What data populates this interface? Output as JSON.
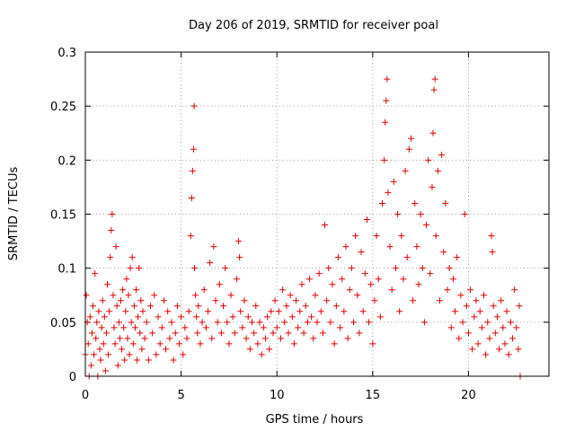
{
  "chart_data": {
    "type": "scatter",
    "title": "Day 206 of 2019, SRMTID for receiver poal",
    "xlabel": "GPS time / hours",
    "ylabel": "SRMTID / TECUs",
    "xlim": [
      0,
      24.2
    ],
    "ylim": [
      0,
      0.3
    ],
    "xticks": [
      0,
      5,
      10,
      15,
      20
    ],
    "xtick_labels": [
      "0",
      "5",
      "10",
      "15",
      "20"
    ],
    "yticks": [
      0,
      0.05,
      0.1,
      0.15,
      0.2,
      0.25,
      0.3
    ],
    "ytick_labels": [
      "0",
      "0.05",
      "0.1",
      "0.15",
      "0.2",
      "0.25",
      "0.3"
    ],
    "grid": true,
    "marker": "+",
    "series": [
      {
        "name": "SRMTID",
        "color": "#e00000",
        "points": [
          [
            0.0,
            0.02
          ],
          [
            0.05,
            0.075
          ],
          [
            0.1,
            0.05
          ],
          [
            0.15,
            0.03
          ],
          [
            0.2,
            0.0
          ],
          [
            0.25,
            0.055
          ],
          [
            0.3,
            0.01
          ],
          [
            0.35,
            0.04
          ],
          [
            0.4,
            0.065
          ],
          [
            0.45,
            0.02
          ],
          [
            0.5,
            0.095
          ],
          [
            0.55,
            0.035
          ],
          [
            0.6,
            0.05
          ],
          [
            0.65,
            0.0
          ],
          [
            0.7,
            0.06
          ],
          [
            0.75,
            0.025
          ],
          [
            0.8,
            0.015
          ],
          [
            0.85,
            0.045
          ],
          [
            0.9,
            0.07
          ],
          [
            0.95,
            0.03
          ],
          [
            1.0,
            0.055
          ],
          [
            1.05,
            0.005
          ],
          [
            1.1,
            0.04
          ],
          [
            1.15,
            0.085
          ],
          [
            1.2,
            0.02
          ],
          [
            1.25,
            0.06
          ],
          [
            1.3,
            0.11
          ],
          [
            1.35,
            0.135
          ],
          [
            1.4,
            0.15
          ],
          [
            1.45,
            0.075
          ],
          [
            1.5,
            0.045
          ],
          [
            1.55,
            0.03
          ],
          [
            1.6,
            0.12
          ],
          [
            1.65,
            0.065
          ],
          [
            1.7,
            0.01
          ],
          [
            1.75,
            0.05
          ],
          [
            1.8,
            0.035
          ],
          [
            1.85,
            0.07
          ],
          [
            1.9,
            0.025
          ],
          [
            1.95,
            0.08
          ],
          [
            2.0,
            0.045
          ],
          [
            2.05,
            0.015
          ],
          [
            2.1,
            0.06
          ],
          [
            2.15,
            0.09
          ],
          [
            2.2,
            0.035
          ],
          [
            2.25,
            0.075
          ],
          [
            2.3,
            0.02
          ],
          [
            2.35,
            0.1
          ],
          [
            2.4,
            0.05
          ],
          [
            2.45,
            0.11
          ],
          [
            2.5,
            0.03
          ],
          [
            2.55,
            0.065
          ],
          [
            2.6,
            0.045
          ],
          [
            2.65,
            0.08
          ],
          [
            2.7,
            0.015
          ],
          [
            2.75,
            0.055
          ],
          [
            2.8,
            0.1
          ],
          [
            2.85,
            0.04
          ],
          [
            2.9,
            0.07
          ],
          [
            2.95,
            0.025
          ],
          [
            3.0,
            0.06
          ],
          [
            3.1,
            0.035
          ],
          [
            3.2,
            0.05
          ],
          [
            3.3,
            0.015
          ],
          [
            3.4,
            0.065
          ],
          [
            3.5,
            0.04
          ],
          [
            3.6,
            0.075
          ],
          [
            3.7,
            0.02
          ],
          [
            3.8,
            0.055
          ],
          [
            3.9,
            0.03
          ],
          [
            4.0,
            0.045
          ],
          [
            4.1,
            0.07
          ],
          [
            4.2,
            0.025
          ],
          [
            4.3,
            0.06
          ],
          [
            4.4,
            0.035
          ],
          [
            4.5,
            0.05
          ],
          [
            4.6,
            0.015
          ],
          [
            4.7,
            0.04
          ],
          [
            4.8,
            0.065
          ],
          [
            4.9,
            0.03
          ],
          [
            5.0,
            0.055
          ],
          [
            5.1,
            0.02
          ],
          [
            5.2,
            0.045
          ],
          [
            5.3,
            0.035
          ],
          [
            5.4,
            0.06
          ],
          [
            5.5,
            0.13
          ],
          [
            5.55,
            0.165
          ],
          [
            5.6,
            0.19
          ],
          [
            5.65,
            0.21
          ],
          [
            5.68,
            0.25
          ],
          [
            5.7,
            0.1
          ],
          [
            5.75,
            0.075
          ],
          [
            5.8,
            0.055
          ],
          [
            5.85,
            0.04
          ],
          [
            5.9,
            0.065
          ],
          [
            6.0,
            0.03
          ],
          [
            6.1,
            0.05
          ],
          [
            6.2,
            0.08
          ],
          [
            6.3,
            0.045
          ],
          [
            6.4,
            0.06
          ],
          [
            6.5,
            0.105
          ],
          [
            6.6,
            0.035
          ],
          [
            6.7,
            0.12
          ],
          [
            6.8,
            0.07
          ],
          [
            6.9,
            0.05
          ],
          [
            7.0,
            0.085
          ],
          [
            7.1,
            0.04
          ],
          [
            7.2,
            0.065
          ],
          [
            7.3,
            0.1
          ],
          [
            7.4,
            0.05
          ],
          [
            7.5,
            0.03
          ],
          [
            7.6,
            0.075
          ],
          [
            7.7,
            0.055
          ],
          [
            7.8,
            0.04
          ],
          [
            7.9,
            0.09
          ],
          [
            8.0,
            0.125
          ],
          [
            8.05,
            0.11
          ],
          [
            8.1,
            0.06
          ],
          [
            8.2,
            0.045
          ],
          [
            8.3,
            0.07
          ],
          [
            8.4,
            0.035
          ],
          [
            8.5,
            0.055
          ],
          [
            8.6,
            0.025
          ],
          [
            8.7,
            0.05
          ],
          [
            8.8,
            0.04
          ],
          [
            8.9,
            0.065
          ],
          [
            9.0,
            0.03
          ],
          [
            9.1,
            0.05
          ],
          [
            9.2,
            0.02
          ],
          [
            9.3,
            0.045
          ],
          [
            9.4,
            0.035
          ],
          [
            9.5,
            0.055
          ],
          [
            9.6,
            0.025
          ],
          [
            9.7,
            0.06
          ],
          [
            9.8,
            0.04
          ],
          [
            9.9,
            0.07
          ],
          [
            10.0,
            0.045
          ],
          [
            10.1,
            0.06
          ],
          [
            10.2,
            0.035
          ],
          [
            10.3,
            0.08
          ],
          [
            10.4,
            0.05
          ],
          [
            10.5,
            0.065
          ],
          [
            10.6,
            0.04
          ],
          [
            10.7,
            0.075
          ],
          [
            10.8,
            0.055
          ],
          [
            10.9,
            0.03
          ],
          [
            11.0,
            0.07
          ],
          [
            11.1,
            0.045
          ],
          [
            11.2,
            0.06
          ],
          [
            11.3,
            0.085
          ],
          [
            11.4,
            0.04
          ],
          [
            11.5,
            0.065
          ],
          [
            11.6,
            0.05
          ],
          [
            11.7,
            0.09
          ],
          [
            11.8,
            0.055
          ],
          [
            11.9,
            0.035
          ],
          [
            12.0,
            0.075
          ],
          [
            12.1,
            0.05
          ],
          [
            12.2,
            0.095
          ],
          [
            12.3,
            0.06
          ],
          [
            12.4,
            0.04
          ],
          [
            12.5,
            0.14
          ],
          [
            12.6,
            0.07
          ],
          [
            12.7,
            0.1
          ],
          [
            12.8,
            0.05
          ],
          [
            12.9,
            0.085
          ],
          [
            13.0,
            0.03
          ],
          [
            13.1,
            0.065
          ],
          [
            13.2,
            0.11
          ],
          [
            13.3,
            0.045
          ],
          [
            13.4,
            0.09
          ],
          [
            13.5,
            0.06
          ],
          [
            13.6,
            0.12
          ],
          [
            13.7,
            0.035
          ],
          [
            13.8,
            0.08
          ],
          [
            13.9,
            0.1
          ],
          [
            14.0,
            0.05
          ],
          [
            14.1,
            0.13
          ],
          [
            14.2,
            0.075
          ],
          [
            14.3,
            0.04
          ],
          [
            14.4,
            0.115
          ],
          [
            14.5,
            0.06
          ],
          [
            14.6,
            0.095
          ],
          [
            14.7,
            0.145
          ],
          [
            14.8,
            0.05
          ],
          [
            14.9,
            0.085
          ],
          [
            15.0,
            0.03
          ],
          [
            15.1,
            0.07
          ],
          [
            15.2,
            0.13
          ],
          [
            15.3,
            0.09
          ],
          [
            15.4,
            0.055
          ],
          [
            15.5,
            0.16
          ],
          [
            15.6,
            0.2
          ],
          [
            15.65,
            0.235
          ],
          [
            15.7,
            0.255
          ],
          [
            15.75,
            0.275
          ],
          [
            15.8,
            0.17
          ],
          [
            15.9,
            0.12
          ],
          [
            16.0,
            0.08
          ],
          [
            16.1,
            0.18
          ],
          [
            16.2,
            0.1
          ],
          [
            16.3,
            0.15
          ],
          [
            16.4,
            0.06
          ],
          [
            16.5,
            0.13
          ],
          [
            16.6,
            0.09
          ],
          [
            16.7,
            0.19
          ],
          [
            16.8,
            0.11
          ],
          [
            16.9,
            0.21
          ],
          [
            17.0,
            0.22
          ],
          [
            17.1,
            0.07
          ],
          [
            17.2,
            0.16
          ],
          [
            17.3,
            0.12
          ],
          [
            17.4,
            0.085
          ],
          [
            17.5,
            0.15
          ],
          [
            17.6,
            0.1
          ],
          [
            17.7,
            0.05
          ],
          [
            17.8,
            0.14
          ],
          [
            17.9,
            0.2
          ],
          [
            18.0,
            0.095
          ],
          [
            18.1,
            0.175
          ],
          [
            18.15,
            0.225
          ],
          [
            18.2,
            0.265
          ],
          [
            18.25,
            0.275
          ],
          [
            18.3,
            0.13
          ],
          [
            18.4,
            0.19
          ],
          [
            18.5,
            0.07
          ],
          [
            18.6,
            0.205
          ],
          [
            18.7,
            0.115
          ],
          [
            18.8,
            0.16
          ],
          [
            18.9,
            0.08
          ],
          [
            19.0,
            0.1
          ],
          [
            19.1,
            0.045
          ],
          [
            19.2,
            0.09
          ],
          [
            19.3,
            0.06
          ],
          [
            19.4,
            0.11
          ],
          [
            19.5,
            0.035
          ],
          [
            19.6,
            0.075
          ],
          [
            19.7,
            0.05
          ],
          [
            19.8,
            0.15
          ],
          [
            19.9,
            0.065
          ],
          [
            20.0,
            0.04
          ],
          [
            20.1,
            0.08
          ],
          [
            20.2,
            0.025
          ],
          [
            20.3,
            0.055
          ],
          [
            20.4,
            0.07
          ],
          [
            20.5,
            0.03
          ],
          [
            20.6,
            0.06
          ],
          [
            20.7,
            0.045
          ],
          [
            20.8,
            0.075
          ],
          [
            20.9,
            0.02
          ],
          [
            21.0,
            0.05
          ],
          [
            21.1,
            0.035
          ],
          [
            21.2,
            0.13
          ],
          [
            21.25,
            0.115
          ],
          [
            21.3,
            0.065
          ],
          [
            21.4,
            0.04
          ],
          [
            21.5,
            0.055
          ],
          [
            21.6,
            0.025
          ],
          [
            21.7,
            0.07
          ],
          [
            21.8,
            0.045
          ],
          [
            21.9,
            0.03
          ],
          [
            22.0,
            0.06
          ],
          [
            22.1,
            0.02
          ],
          [
            22.2,
            0.05
          ],
          [
            22.3,
            0.035
          ],
          [
            22.4,
            0.08
          ],
          [
            22.5,
            0.045
          ],
          [
            22.6,
            0.025
          ],
          [
            22.65,
            0.065
          ],
          [
            22.7,
            0.0
          ]
        ]
      }
    ]
  }
}
